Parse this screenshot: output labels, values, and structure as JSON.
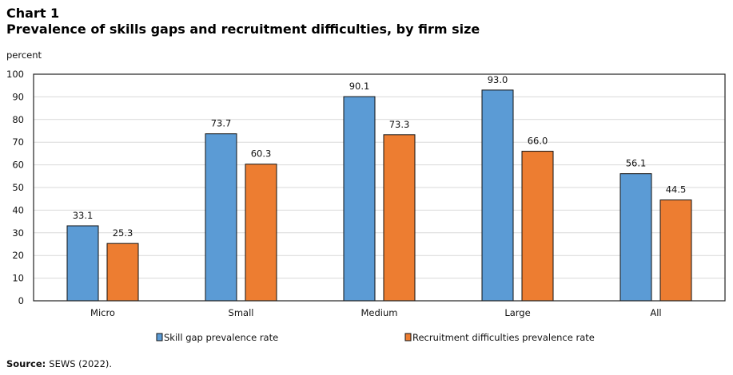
{
  "chart_data": {
    "type": "bar",
    "title": "Chart 1",
    "subtitle": "Prevalence of skills gaps and recruitment difficulties, by firm size",
    "ylabel": "percent",
    "xlabel": "",
    "ylim": [
      0,
      100
    ],
    "yticks": [
      0,
      10,
      20,
      30,
      40,
      50,
      60,
      70,
      80,
      90,
      100
    ],
    "grid": true,
    "legend_position": "bottom",
    "categories": [
      "Micro",
      "Small",
      "Medium",
      "Large",
      "All"
    ],
    "series": [
      {
        "name": "Skill gap prevalence rate",
        "color": "#5b9bd5",
        "values": [
          33.1,
          73.7,
          90.1,
          93.0,
          56.1
        ],
        "labels": [
          "33.1",
          "73.7",
          "90.1",
          "93.0",
          "56.1"
        ]
      },
      {
        "name": "Recruitment difficulties prevalence rate",
        "color": "#ed7d31",
        "values": [
          25.3,
          60.3,
          73.3,
          66.0,
          44.5
        ],
        "labels": [
          "25.3",
          "60.3",
          "73.3",
          "66.0",
          "44.5"
        ]
      }
    ],
    "source_label": "Source:",
    "source_text": "SEWS (2022)."
  }
}
